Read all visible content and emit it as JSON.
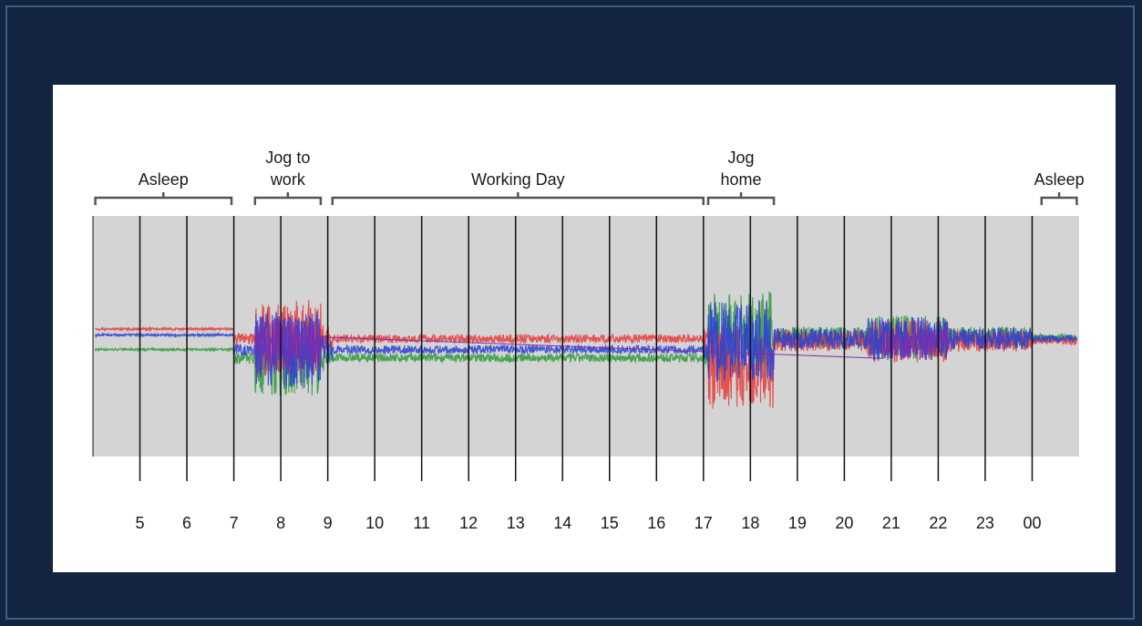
{
  "chart_data": {
    "type": "line",
    "title": "",
    "xlabel": "",
    "ylabel": "",
    "x_unit": "hour of day",
    "x_range": [
      4.0,
      25.0
    ],
    "y_range": [
      -1,
      1
    ],
    "grid": "vertical lines at each hour",
    "ticks": [
      "5",
      "6",
      "7",
      "8",
      "9",
      "10",
      "11",
      "12",
      "13",
      "14",
      "15",
      "16",
      "17",
      "18",
      "19",
      "20",
      "21",
      "22",
      "23",
      "00"
    ],
    "tick_hours": [
      5,
      6,
      7,
      8,
      9,
      10,
      11,
      12,
      13,
      14,
      15,
      16,
      17,
      18,
      19,
      20,
      21,
      22,
      23,
      24
    ],
    "colors": {
      "red": "#e83b3b",
      "green": "#2e9a3a",
      "blue": "#2a3fd6",
      "purple": "#7a2db0"
    },
    "activities": [
      {
        "label_lines": [
          "Asleep"
        ],
        "start": 4.05,
        "end": 6.95
      },
      {
        "label_lines": [
          "Jog to",
          "work"
        ],
        "start": 7.45,
        "end": 8.85
      },
      {
        "label_lines": [
          "Working Day"
        ],
        "start": 9.1,
        "end": 17.0
      },
      {
        "label_lines": [
          "Jog",
          "home"
        ],
        "start": 17.1,
        "end": 18.5
      },
      {
        "label_lines": [
          "Asleep"
        ],
        "start": 24.2,
        "end": 24.95
      }
    ]
  }
}
